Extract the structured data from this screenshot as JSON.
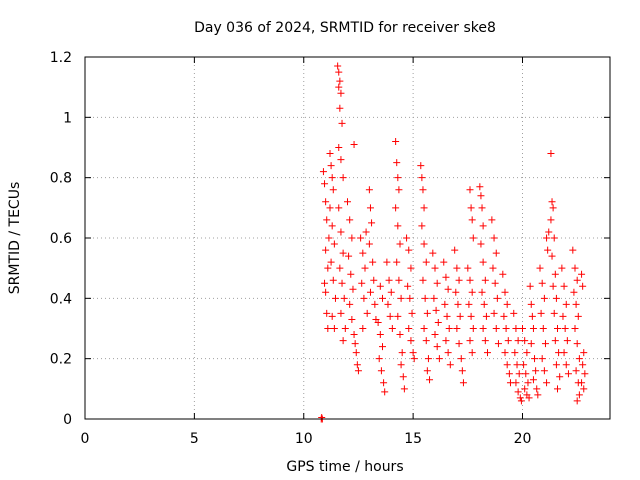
{
  "chart_data": {
    "type": "scatter",
    "title": "Day 036 of 2024, SRMTID for receiver ske8",
    "xlabel": "GPS time / hours",
    "ylabel": "SRMTID / TECUs",
    "xlim": [
      0,
      24
    ],
    "ylim": [
      0,
      1.2
    ],
    "xticks": [
      0,
      5,
      10,
      15,
      20
    ],
    "xtick_labels": [
      "0",
      "5",
      "10",
      "15",
      "20"
    ],
    "yticks": [
      0,
      0.2,
      0.4,
      0.6,
      0.8,
      1,
      1.2
    ],
    "ytick_labels": [
      "0",
      "0.2",
      "0.4",
      "0.6",
      "0.8",
      "1",
      "1.2"
    ],
    "grid": true,
    "marker": "+",
    "series": [
      {
        "name": "SRMTID",
        "color": "#ff0000",
        "points": [
          [
            10.8,
            0.0
          ],
          [
            10.85,
            0.0
          ],
          [
            10.82,
            0.005
          ],
          [
            10.9,
            0.82
          ],
          [
            10.95,
            0.78
          ],
          [
            11.0,
            0.72
          ],
          [
            11.05,
            0.66
          ],
          [
            11.0,
            0.56
          ],
          [
            11.1,
            0.5
          ],
          [
            10.95,
            0.45
          ],
          [
            11.05,
            0.35
          ],
          [
            11.1,
            0.3
          ],
          [
            11.0,
            0.42
          ],
          [
            11.15,
            0.6
          ],
          [
            11.2,
            0.88
          ],
          [
            11.25,
            0.84
          ],
          [
            11.3,
            0.8
          ],
          [
            11.35,
            0.76
          ],
          [
            11.2,
            0.7
          ],
          [
            11.3,
            0.64
          ],
          [
            11.4,
            0.58
          ],
          [
            11.25,
            0.52
          ],
          [
            11.35,
            0.46
          ],
          [
            11.45,
            0.4
          ],
          [
            11.3,
            0.34
          ],
          [
            11.4,
            0.3
          ],
          [
            11.55,
            1.17
          ],
          [
            11.6,
            1.15
          ],
          [
            11.65,
            1.12
          ],
          [
            11.6,
            1.1
          ],
          [
            11.7,
            1.08
          ],
          [
            11.65,
            1.03
          ],
          [
            11.75,
            0.98
          ],
          [
            11.6,
            0.9
          ],
          [
            11.7,
            0.86
          ],
          [
            11.8,
            0.8
          ],
          [
            11.6,
            0.7
          ],
          [
            11.7,
            0.62
          ],
          [
            11.8,
            0.55
          ],
          [
            11.65,
            0.5
          ],
          [
            11.75,
            0.45
          ],
          [
            11.85,
            0.4
          ],
          [
            11.7,
            0.35
          ],
          [
            11.9,
            0.3
          ],
          [
            11.8,
            0.26
          ],
          [
            12.0,
            0.72
          ],
          [
            12.1,
            0.66
          ],
          [
            12.2,
            0.6
          ],
          [
            12.05,
            0.54
          ],
          [
            12.15,
            0.48
          ],
          [
            12.25,
            0.43
          ],
          [
            12.1,
            0.38
          ],
          [
            12.2,
            0.33
          ],
          [
            12.3,
            0.28
          ],
          [
            12.3,
            0.91
          ],
          [
            12.4,
            0.22
          ],
          [
            12.45,
            0.18
          ],
          [
            12.5,
            0.16
          ],
          [
            12.35,
            0.25
          ],
          [
            12.6,
            0.6
          ],
          [
            12.7,
            0.55
          ],
          [
            12.8,
            0.5
          ],
          [
            12.65,
            0.45
          ],
          [
            12.75,
            0.4
          ],
          [
            12.9,
            0.35
          ],
          [
            12.7,
            0.3
          ],
          [
            12.85,
            0.62
          ],
          [
            13.0,
            0.76
          ],
          [
            13.05,
            0.7
          ],
          [
            13.1,
            0.65
          ],
          [
            13.0,
            0.58
          ],
          [
            13.15,
            0.52
          ],
          [
            13.2,
            0.46
          ],
          [
            13.05,
            0.42
          ],
          [
            13.25,
            0.38
          ],
          [
            13.3,
            0.33
          ],
          [
            13.4,
            0.32
          ],
          [
            13.5,
            0.28
          ],
          [
            13.6,
            0.24
          ],
          [
            13.45,
            0.2
          ],
          [
            13.55,
            0.16
          ],
          [
            13.65,
            0.12
          ],
          [
            13.7,
            0.09
          ],
          [
            13.5,
            0.44
          ],
          [
            13.6,
            0.4
          ],
          [
            13.8,
            0.52
          ],
          [
            13.9,
            0.46
          ],
          [
            14.0,
            0.42
          ],
          [
            13.85,
            0.38
          ],
          [
            13.95,
            0.34
          ],
          [
            14.05,
            0.3
          ],
          [
            14.2,
            0.92
          ],
          [
            14.25,
            0.85
          ],
          [
            14.3,
            0.8
          ],
          [
            14.35,
            0.76
          ],
          [
            14.2,
            0.7
          ],
          [
            14.3,
            0.64
          ],
          [
            14.4,
            0.58
          ],
          [
            14.25,
            0.52
          ],
          [
            14.35,
            0.46
          ],
          [
            14.45,
            0.4
          ],
          [
            14.3,
            0.34
          ],
          [
            14.4,
            0.28
          ],
          [
            14.5,
            0.22
          ],
          [
            14.45,
            0.18
          ],
          [
            14.55,
            0.14
          ],
          [
            14.6,
            0.1
          ],
          [
            14.7,
            0.6
          ],
          [
            14.8,
            0.56
          ],
          [
            14.9,
            0.5
          ],
          [
            14.75,
            0.44
          ],
          [
            14.85,
            0.4
          ],
          [
            14.95,
            0.35
          ],
          [
            14.8,
            0.3
          ],
          [
            14.9,
            0.26
          ],
          [
            15.0,
            0.22
          ],
          [
            15.05,
            0.2
          ],
          [
            15.35,
            0.84
          ],
          [
            15.4,
            0.8
          ],
          [
            15.45,
            0.76
          ],
          [
            15.5,
            0.7
          ],
          [
            15.4,
            0.64
          ],
          [
            15.5,
            0.58
          ],
          [
            15.6,
            0.52
          ],
          [
            15.45,
            0.46
          ],
          [
            15.55,
            0.4
          ],
          [
            15.65,
            0.35
          ],
          [
            15.5,
            0.3
          ],
          [
            15.6,
            0.26
          ],
          [
            15.7,
            0.2
          ],
          [
            15.65,
            0.16
          ],
          [
            15.75,
            0.13
          ],
          [
            15.9,
            0.55
          ],
          [
            16.0,
            0.5
          ],
          [
            16.1,
            0.45
          ],
          [
            15.95,
            0.4
          ],
          [
            16.05,
            0.36
          ],
          [
            16.15,
            0.32
          ],
          [
            16.0,
            0.28
          ],
          [
            16.1,
            0.24
          ],
          [
            16.2,
            0.2
          ],
          [
            16.4,
            0.52
          ],
          [
            16.5,
            0.47
          ],
          [
            16.6,
            0.43
          ],
          [
            16.45,
            0.38
          ],
          [
            16.55,
            0.34
          ],
          [
            16.65,
            0.3
          ],
          [
            16.5,
            0.26
          ],
          [
            16.6,
            0.22
          ],
          [
            16.7,
            0.18
          ],
          [
            16.9,
            0.56
          ],
          [
            17.0,
            0.5
          ],
          [
            17.1,
            0.46
          ],
          [
            16.95,
            0.42
          ],
          [
            17.05,
            0.38
          ],
          [
            17.15,
            0.34
          ],
          [
            17.0,
            0.3
          ],
          [
            17.1,
            0.25
          ],
          [
            17.2,
            0.2
          ],
          [
            17.25,
            0.16
          ],
          [
            17.3,
            0.12
          ],
          [
            17.5,
            0.5
          ],
          [
            17.6,
            0.46
          ],
          [
            17.7,
            0.42
          ],
          [
            17.55,
            0.38
          ],
          [
            17.65,
            0.34
          ],
          [
            17.75,
            0.3
          ],
          [
            17.6,
            0.26
          ],
          [
            17.7,
            0.22
          ],
          [
            17.6,
            0.76
          ],
          [
            17.65,
            0.7
          ],
          [
            17.7,
            0.66
          ],
          [
            17.75,
            0.6
          ],
          [
            18.05,
            0.77
          ],
          [
            18.1,
            0.74
          ],
          [
            18.15,
            0.7
          ],
          [
            18.2,
            0.64
          ],
          [
            18.1,
            0.58
          ],
          [
            18.2,
            0.52
          ],
          [
            18.3,
            0.46
          ],
          [
            18.15,
            0.42
          ],
          [
            18.25,
            0.38
          ],
          [
            18.35,
            0.34
          ],
          [
            18.2,
            0.3
          ],
          [
            18.3,
            0.26
          ],
          [
            18.4,
            0.22
          ],
          [
            18.6,
            0.66
          ],
          [
            18.7,
            0.6
          ],
          [
            18.8,
            0.55
          ],
          [
            18.65,
            0.5
          ],
          [
            18.75,
            0.45
          ],
          [
            18.85,
            0.4
          ],
          [
            18.7,
            0.35
          ],
          [
            18.8,
            0.3
          ],
          [
            18.9,
            0.25
          ],
          [
            19.1,
            0.48
          ],
          [
            19.2,
            0.42
          ],
          [
            19.3,
            0.38
          ],
          [
            19.15,
            0.34
          ],
          [
            19.25,
            0.3
          ],
          [
            19.35,
            0.26
          ],
          [
            19.2,
            0.22
          ],
          [
            19.3,
            0.18
          ],
          [
            19.4,
            0.15
          ],
          [
            19.45,
            0.12
          ],
          [
            19.6,
            0.35
          ],
          [
            19.7,
            0.3
          ],
          [
            19.8,
            0.26
          ],
          [
            19.65,
            0.22
          ],
          [
            19.75,
            0.18
          ],
          [
            19.85,
            0.15
          ],
          [
            19.7,
            0.12
          ],
          [
            19.8,
            0.09
          ],
          [
            19.9,
            0.07
          ],
          [
            19.95,
            0.06
          ],
          [
            20.0,
            0.3
          ],
          [
            20.1,
            0.26
          ],
          [
            20.2,
            0.22
          ],
          [
            20.05,
            0.18
          ],
          [
            20.15,
            0.15
          ],
          [
            20.25,
            0.12
          ],
          [
            20.1,
            0.1
          ],
          [
            20.2,
            0.08
          ],
          [
            20.3,
            0.07
          ],
          [
            20.35,
            0.44
          ],
          [
            20.4,
            0.38
          ],
          [
            20.45,
            0.34
          ],
          [
            20.5,
            0.3
          ],
          [
            20.4,
            0.25
          ],
          [
            20.55,
            0.2
          ],
          [
            20.6,
            0.16
          ],
          [
            20.5,
            0.13
          ],
          [
            20.65,
            0.1
          ],
          [
            20.7,
            0.08
          ],
          [
            20.8,
            0.5
          ],
          [
            20.9,
            0.45
          ],
          [
            21.0,
            0.4
          ],
          [
            20.85,
            0.35
          ],
          [
            20.95,
            0.3
          ],
          [
            21.05,
            0.25
          ],
          [
            20.9,
            0.2
          ],
          [
            21.0,
            0.16
          ],
          [
            21.1,
            0.12
          ],
          [
            21.1,
            0.6
          ],
          [
            21.15,
            0.56
          ],
          [
            21.2,
            0.62
          ],
          [
            21.3,
            0.88
          ],
          [
            21.35,
            0.72
          ],
          [
            21.4,
            0.7
          ],
          [
            21.3,
            0.66
          ],
          [
            21.45,
            0.6
          ],
          [
            21.35,
            0.54
          ],
          [
            21.5,
            0.48
          ],
          [
            21.4,
            0.44
          ],
          [
            21.55,
            0.4
          ],
          [
            21.45,
            0.35
          ],
          [
            21.6,
            0.3
          ],
          [
            21.5,
            0.26
          ],
          [
            21.65,
            0.22
          ],
          [
            21.55,
            0.18
          ],
          [
            21.7,
            0.14
          ],
          [
            21.6,
            0.1
          ],
          [
            21.8,
            0.5
          ],
          [
            21.9,
            0.44
          ],
          [
            22.0,
            0.38
          ],
          [
            21.85,
            0.34
          ],
          [
            21.95,
            0.3
          ],
          [
            22.05,
            0.26
          ],
          [
            21.9,
            0.22
          ],
          [
            22.0,
            0.18
          ],
          [
            22.1,
            0.15
          ],
          [
            22.3,
            0.56
          ],
          [
            22.4,
            0.5
          ],
          [
            22.5,
            0.46
          ],
          [
            22.35,
            0.42
          ],
          [
            22.45,
            0.38
          ],
          [
            22.55,
            0.34
          ],
          [
            22.4,
            0.3
          ],
          [
            22.5,
            0.25
          ],
          [
            22.6,
            0.2
          ],
          [
            22.45,
            0.16
          ],
          [
            22.55,
            0.12
          ],
          [
            22.6,
            0.08
          ],
          [
            22.5,
            0.06
          ],
          [
            22.7,
            0.48
          ],
          [
            22.75,
            0.44
          ],
          [
            22.8,
            0.22
          ],
          [
            22.75,
            0.18
          ],
          [
            22.85,
            0.15
          ],
          [
            22.7,
            0.12
          ],
          [
            22.8,
            0.1
          ]
        ]
      }
    ]
  }
}
